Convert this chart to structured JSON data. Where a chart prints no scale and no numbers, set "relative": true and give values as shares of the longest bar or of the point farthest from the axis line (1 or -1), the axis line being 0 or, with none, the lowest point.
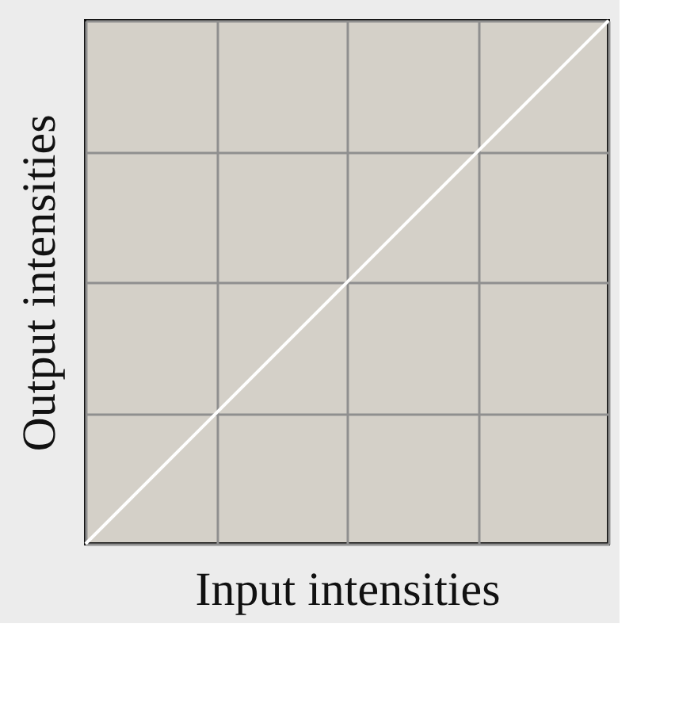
{
  "chart_data": {
    "type": "line",
    "xlabel": "Input intensities",
    "ylabel": "Output intensities",
    "relative": true,
    "categories": [
      null,
      null
    ],
    "series": [
      {
        "color": "#ffffff",
        "values": [
          0,
          1
        ]
      }
    ],
    "grid": true,
    "marker": "none",
    "line_style": "solid"
  }
}
